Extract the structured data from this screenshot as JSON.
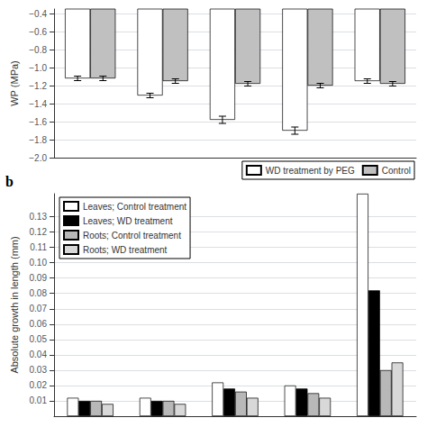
{
  "chart_data": [
    {
      "type": "bar",
      "ylabel": "WP (MPa)",
      "categories": [
        null,
        null,
        null,
        null,
        null
      ],
      "series": [
        {
          "name": "WD treatment by PEG",
          "color": "white",
          "values": [
            -1.12,
            -1.31,
            -1.58,
            -1.7,
            -1.15
          ],
          "errors": [
            0.025,
            0.025,
            0.04,
            0.04,
            0.025
          ]
        },
        {
          "name": "Control",
          "color": "#c0c0c0",
          "values": [
            -1.12,
            -1.15,
            -1.18,
            -1.2,
            -1.18
          ],
          "errors": [
            0.025,
            0.025,
            0.025,
            0.025,
            0.025
          ]
        }
      ],
      "ylim": [
        -2.0,
        -0.35
      ],
      "yticks": [
        {
          "value": -2.0,
          "label": "−2.0"
        },
        {
          "value": -1.8,
          "label": "−1.8"
        },
        {
          "value": -1.6,
          "label": "−1.6"
        },
        {
          "value": -1.4,
          "label": "−1.4"
        },
        {
          "value": -1.2,
          "label": "−1.2"
        },
        {
          "value": -1.0,
          "label": "−1.0"
        },
        {
          "value": -0.8,
          "label": "−0.8"
        },
        {
          "value": -0.6,
          "label": "−0.6"
        },
        {
          "value": -0.4,
          "label": "−0.4"
        }
      ],
      "grid": true,
      "legend": "lower right",
      "tick_labels": "y"
    },
    {
      "type": "bar",
      "ylabel": "Absolute growth in length (mm)",
      "annotation": "b",
      "categories": [
        null,
        null,
        null,
        null,
        null
      ],
      "series": [
        {
          "name": "Leaves; Control treatment",
          "color": "white",
          "values": [
            0.012,
            0.012,
            0.022,
            0.02,
            0.145
          ]
        },
        {
          "name": "Leaves; WD treatment",
          "color": "black",
          "values": [
            0.01,
            0.01,
            0.018,
            0.018,
            0.082
          ]
        },
        {
          "name": "Roots; Control treatment",
          "color": "#b8b8b8",
          "values": [
            0.01,
            0.01,
            0.016,
            0.015,
            0.03
          ]
        },
        {
          "name": "Roots; WD treatment",
          "color": "#d8d8d8",
          "values": [
            0.008,
            0.008,
            0.012,
            0.012,
            0.035
          ]
        }
      ],
      "ylim": [
        0.0,
        0.145
      ],
      "yticks": [
        0.01,
        0.02,
        0.03,
        0.04,
        0.05,
        0.06,
        0.07,
        0.08,
        0.09,
        {
          "value": 0.1,
          "label": "0.10"
        },
        0.11,
        0.12,
        0.13
      ],
      "grid": true,
      "legend": "upper left",
      "tick_labels": "y"
    }
  ]
}
